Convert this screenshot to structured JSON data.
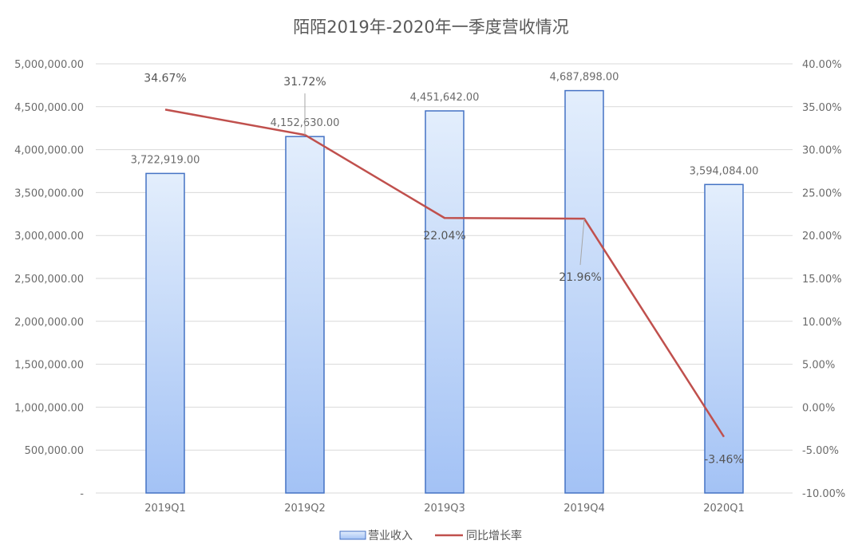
{
  "chart_data": {
    "type": "bar",
    "title": "陌陌2019年-2020年一季度营收情况",
    "categories": [
      "2019Q1",
      "2019Q2",
      "2019Q3",
      "2019Q4",
      "2020Q1"
    ],
    "series": [
      {
        "name": "营业收入",
        "type": "bar",
        "axis": "left",
        "values": [
          3722919.0,
          4152630.0,
          4451642.0,
          4687898.0,
          3594084.0
        ],
        "labels": [
          "3,722,919.00",
          "4,152,630.00",
          "4,451,642.00",
          "4,687,898.00",
          "3,594,084.00"
        ],
        "color": "#4472c4"
      },
      {
        "name": "同比增长率",
        "type": "line",
        "axis": "right",
        "values": [
          34.67,
          31.72,
          22.04,
          21.96,
          -3.46
        ],
        "labels": [
          "34.67%",
          "31.72%",
          "22.04%",
          "21.96%",
          "-3.46%"
        ],
        "color": "#c0504d"
      }
    ],
    "y_left": {
      "range": [
        0,
        5000000
      ],
      "ticks": [
        "-",
        "500,000.00",
        "1,000,000.00",
        "1,500,000.00",
        "2,000,000.00",
        "2,500,000.00",
        "3,000,000.00",
        "3,500,000.00",
        "4,000,000.00",
        "4,500,000.00",
        "5,000,000.00"
      ]
    },
    "y_right": {
      "range": [
        -10,
        40
      ],
      "ticks": [
        "-10.00%",
        "-5.00%",
        "0.00%",
        "5.00%",
        "10.00%",
        "15.00%",
        "20.00%",
        "25.00%",
        "30.00%",
        "35.00%",
        "40.00%"
      ]
    },
    "grid": true,
    "legend_position": "bottom"
  }
}
